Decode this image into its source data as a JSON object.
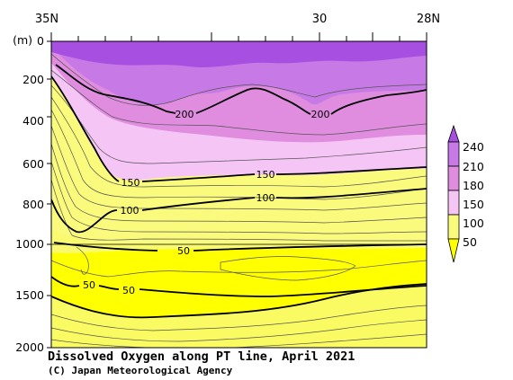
{
  "chart_data": {
    "type": "heatmap",
    "title": "Dissolved Oxygen along PT line, April 2021",
    "credit": "(C) Japan Meteorological Agency",
    "x_tick_labels": [
      "35N",
      "30",
      "28N"
    ],
    "x_ticks_deg": [
      35,
      30,
      28
    ],
    "y_unit_label": "(m)",
    "y_tick_labels": [
      "0",
      "200",
      "400",
      "600",
      "800",
      "1000",
      "1500",
      "2000"
    ],
    "y_ticks_m": [
      0,
      200,
      400,
      600,
      800,
      1000,
      1500,
      2000
    ],
    "colorbar": {
      "levels": [
        50,
        100,
        150,
        180,
        210,
        240
      ],
      "labels": [
        "50",
        "100",
        "150",
        "180",
        "210",
        "240"
      ],
      "colors": [
        "#ffff00",
        "#fafa7d",
        "#f5c6f5",
        "#e08de0",
        "#c77ae6",
        "#a64fe0"
      ]
    },
    "contour_labels": [
      {
        "text": "200",
        "lat": 33.7,
        "depth_m": 345
      },
      {
        "text": "200",
        "lat": 30.05,
        "depth_m": 345
      },
      {
        "text": "150",
        "lat": 32.7,
        "depth_m": 650
      },
      {
        "text": "150",
        "lat": 30.3,
        "depth_m": 650
      },
      {
        "text": "100",
        "lat": 33.4,
        "depth_m": 760
      },
      {
        "text": "100",
        "lat": 30.9,
        "depth_m": 720
      },
      {
        "text": "50",
        "lat": 32.9,
        "depth_m": 1045
      },
      {
        "text": "50",
        "lat": 34.4,
        "depth_m": 1350
      },
      {
        "text": "50",
        "lat": 33.4,
        "depth_m": 1400
      }
    ]
  }
}
